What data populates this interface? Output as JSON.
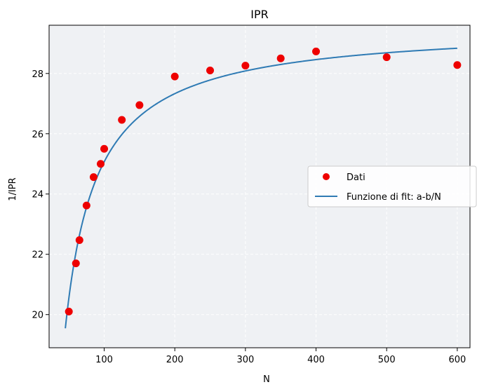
{
  "chart_data": {
    "type": "scatter",
    "title": "IPR",
    "xlabel": "N",
    "ylabel": "1/IPR",
    "xlim": [
      22,
      618
    ],
    "ylim": [
      18.9,
      29.6
    ],
    "xticks": [
      100,
      200,
      300,
      400,
      500,
      600
    ],
    "yticks": [
      20,
      22,
      24,
      26,
      28
    ],
    "grid": true,
    "grid_style": "dashed",
    "background": "#eff1f4",
    "legend_placement": "center-right",
    "series": [
      {
        "name": "Dati",
        "kind": "points",
        "color": "#ee0000",
        "x": [
          50,
          60,
          65,
          75,
          85,
          95,
          100,
          125,
          150,
          200,
          250,
          300,
          350,
          400,
          500,
          600
        ],
        "y": [
          20.1,
          21.7,
          22.47,
          23.62,
          24.56,
          25.0,
          25.5,
          26.46,
          26.95,
          27.9,
          28.1,
          28.26,
          28.5,
          28.73,
          28.54,
          28.28
        ]
      },
      {
        "name": "Funzione di fit: a-b/N",
        "kind": "line",
        "color": "#2f7bb4",
        "a": 29.59,
        "b": 452,
        "x_start": 45,
        "x_end": 600
      }
    ]
  }
}
